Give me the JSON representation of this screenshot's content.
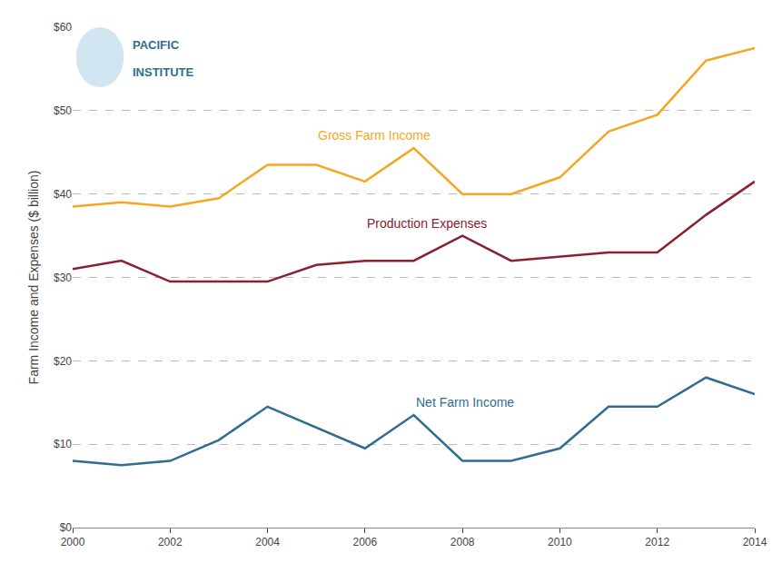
{
  "chart_data": {
    "type": "line",
    "y_label": "Farm Income and Expenses ($ billion)",
    "x": [
      2000,
      2001,
      2002,
      2003,
      2004,
      2005,
      2006,
      2007,
      2008,
      2009,
      2010,
      2011,
      2012,
      2013,
      2014
    ],
    "series": [
      {
        "name": "Gross Farm Income",
        "color": "#F5A623",
        "values": [
          38.5,
          39.0,
          38.5,
          39.5,
          43.5,
          43.5,
          41.5,
          45.5,
          40.0,
          40.0,
          42.0,
          47.5,
          49.5,
          56.0,
          57.5
        ]
      },
      {
        "name": "Production Expenses",
        "color": "#8B2030",
        "values": [
          31.0,
          32.0,
          29.5,
          29.5,
          29.5,
          31.5,
          32.0,
          32.0,
          35.0,
          32.0,
          32.5,
          33.0,
          33.0,
          37.5,
          41.5
        ]
      },
      {
        "name": "Net Farm Income",
        "color": "#2E6E8E",
        "values": [
          8.0,
          7.5,
          8.0,
          10.5,
          14.5,
          12.0,
          9.5,
          13.5,
          8.0,
          8.0,
          9.5,
          14.5,
          14.5,
          18.0,
          16.0
        ]
      }
    ],
    "xlim": [
      2000,
      2014
    ],
    "xticks": [
      2000,
      2002,
      2004,
      2006,
      2008,
      2010,
      2012,
      2014
    ],
    "ylim": [
      0,
      60
    ],
    "yticks": [
      {
        "value": 0,
        "label": "$0"
      },
      {
        "value": 10,
        "label": "$10"
      },
      {
        "value": 20,
        "label": "$20"
      },
      {
        "value": 30,
        "label": "$30"
      },
      {
        "value": 40,
        "label": "$40"
      },
      {
        "value": 50,
        "label": "$50"
      },
      {
        "value": 60,
        "label": "$60"
      }
    ],
    "grid": true,
    "annotations": [
      "PACIFIC",
      "INSTITUTE"
    ]
  }
}
